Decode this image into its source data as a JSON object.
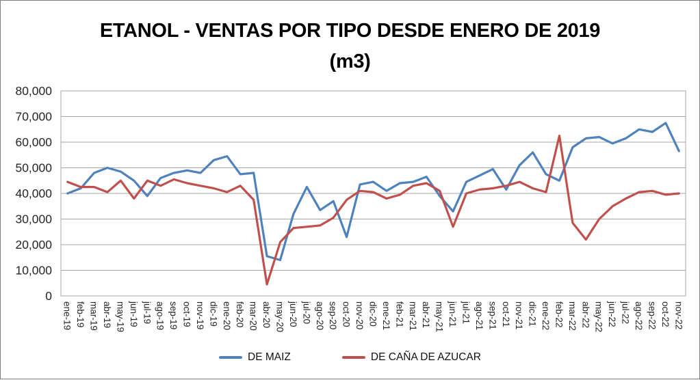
{
  "title": {
    "line1": "ETANOL - VENTAS POR TIPO DESDE ENERO DE 2019",
    "line2": "(m3)"
  },
  "chart_data": {
    "type": "line",
    "title": "ETANOL - VENTAS POR TIPO DESDE ENERO DE 2019 (m3)",
    "xlabel": "",
    "ylabel": "",
    "ylim": [
      0,
      80000
    ],
    "ytick_step": 10000,
    "ytick_labels": [
      "0",
      "10,000",
      "20,000",
      "30,000",
      "40,000",
      "50,000",
      "60,000",
      "70,000",
      "80,000"
    ],
    "grid": "horizontal",
    "legend_position": "bottom",
    "categories": [
      "ene-19",
      "feb-19",
      "mar-19",
      "abr-19",
      "may-19",
      "jun-19",
      "jul-19",
      "ago-19",
      "sep-19",
      "oct-19",
      "nov-19",
      "dic-19",
      "ene-20",
      "feb-20",
      "mar-20",
      "abr-20",
      "may-20",
      "jun-20",
      "jul-20",
      "ago-20",
      "sep-20",
      "oct-20",
      "nov-20",
      "dic-20",
      "ene-21",
      "feb-21",
      "mar-21",
      "abr-21",
      "may-21",
      "jun-21",
      "jul-21",
      "ago-21",
      "sep-21",
      "oct-21",
      "nov-21",
      "dic-21",
      "ene-22",
      "feb-22",
      "mar-22",
      "abr-22",
      "may-22",
      "jun-22",
      "jul-22",
      "ago-22",
      "sep-22",
      "oct-22",
      "nov-22"
    ],
    "series": [
      {
        "name": "DE MAIZ",
        "color": "#4F81BD",
        "values": [
          40000,
          42000,
          48000,
          50000,
          48500,
          45000,
          39000,
          46000,
          48000,
          49000,
          48000,
          53000,
          54500,
          47500,
          48000,
          15500,
          14000,
          32000,
          42500,
          33500,
          37000,
          23000,
          43500,
          44500,
          41000,
          44000,
          44500,
          46500,
          39000,
          33000,
          44500,
          47000,
          49500,
          41500,
          51000,
          56000,
          47500,
          45000,
          58000,
          61500,
          62000,
          59500,
          61500,
          65000,
          64000,
          67500,
          56500
        ]
      },
      {
        "name": "DE CAÑA DE AZUCAR",
        "color": "#C0504D",
        "values": [
          44500,
          42500,
          42500,
          40500,
          45000,
          38000,
          45000,
          43000,
          45500,
          44000,
          43000,
          42000,
          40500,
          43000,
          37500,
          4500,
          21000,
          26500,
          27000,
          27500,
          30500,
          37500,
          41000,
          40500,
          38000,
          39500,
          43000,
          44000,
          41000,
          27000,
          40000,
          41500,
          42000,
          43000,
          44500,
          42000,
          40500,
          62500,
          28500,
          22000,
          30000,
          35000,
          38000,
          40500,
          41000,
          39500,
          40000
        ]
      }
    ],
    "colors": {
      "gridline": "#A6A6A6",
      "plot_border": "#A6A6A6"
    }
  }
}
